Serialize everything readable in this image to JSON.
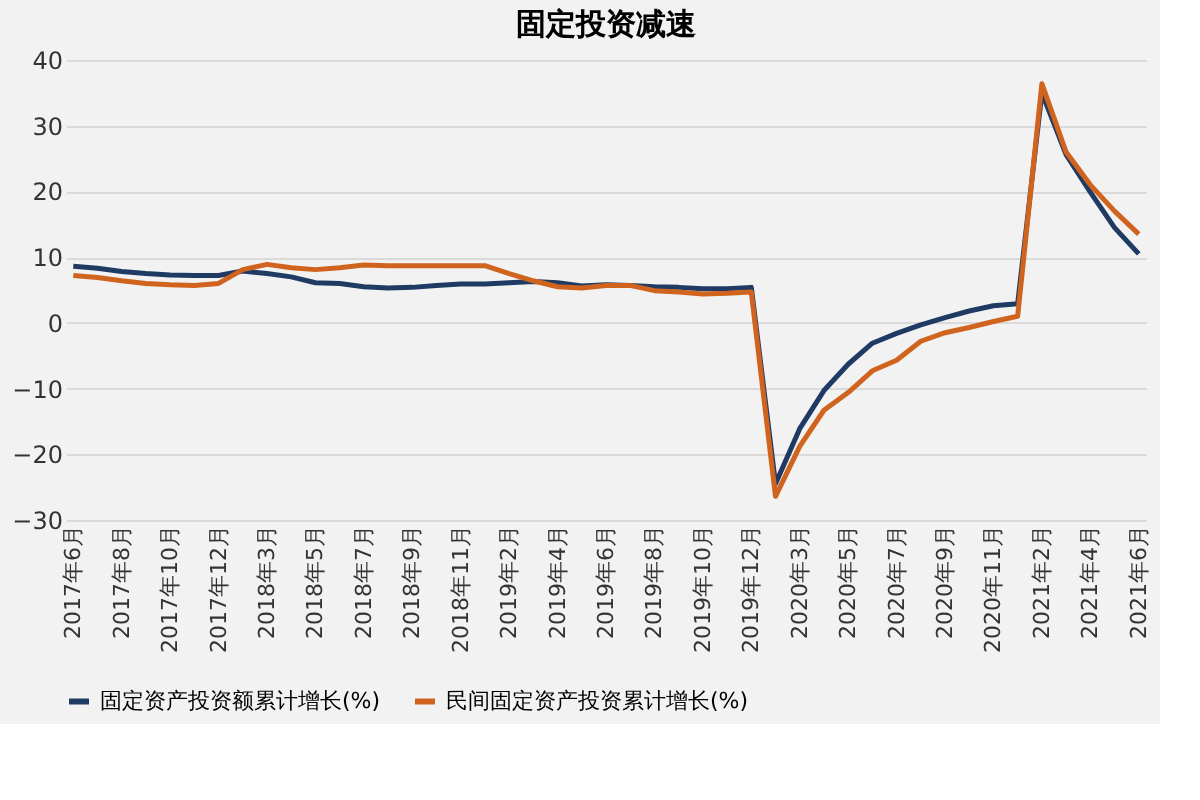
{
  "chart_data": {
    "type": "line",
    "title": "固定投资减速",
    "categories": [
      "2017年6月",
      null,
      "2017年8月",
      null,
      "2017年10月",
      null,
      "2017年12月",
      null,
      "2018年3月",
      null,
      "2018年5月",
      null,
      "2018年7月",
      null,
      "2018年9月",
      null,
      "2018年11月",
      null,
      "2019年2月",
      null,
      "2019年4月",
      null,
      "2019年6月",
      null,
      "2019年8月",
      null,
      "2019年10月",
      null,
      "2019年12月",
      null,
      "2020年3月",
      null,
      "2020年5月",
      null,
      "2020年7月",
      null,
      "2020年9月",
      null,
      "2020年11月",
      null,
      "2021年2月",
      null,
      "2021年4月",
      null,
      "2021年6月"
    ],
    "series": [
      {
        "name": "固定资产投资额累计增长(%)",
        "color": "#1f3b64",
        "values": [
          8.6,
          8.3,
          7.8,
          7.5,
          7.3,
          7.2,
          7.2,
          7.9,
          7.5,
          7.0,
          6.1,
          6.0,
          5.5,
          5.3,
          5.4,
          5.7,
          5.9,
          5.9,
          6.1,
          6.3,
          6.1,
          5.6,
          5.8,
          5.7,
          5.5,
          5.4,
          5.2,
          5.2,
          5.4,
          -24.5,
          -16.1,
          -10.3,
          -6.3,
          -3.1,
          -1.6,
          -0.3,
          0.8,
          1.8,
          2.6,
          2.9,
          35.0,
          25.6,
          19.9,
          14.5,
          10.5
        ]
      },
      {
        "name": "民间固定资产投资累计增长(%)",
        "color": "#d0641e",
        "values": [
          7.2,
          6.9,
          6.4,
          6.0,
          5.8,
          5.7,
          6.0,
          8.1,
          8.9,
          8.4,
          8.1,
          8.4,
          8.8,
          8.7,
          8.7,
          8.7,
          8.7,
          8.7,
          7.5,
          6.4,
          5.5,
          5.3,
          5.7,
          5.7,
          4.9,
          4.7,
          4.4,
          4.5,
          4.7,
          -26.4,
          -18.8,
          -13.3,
          -10.6,
          -7.3,
          -5.7,
          -2.8,
          -1.5,
          -0.7,
          0.2,
          1.0,
          36.4,
          26.0,
          21.0,
          17.0,
          13.5
        ]
      }
    ],
    "ylim": [
      -30,
      40
    ],
    "yticks": [
      -30,
      -20,
      -10,
      0,
      10,
      20,
      30,
      40
    ],
    "grid": "y",
    "legend": "bottom",
    "marker": "none",
    "line_style": "solid"
  }
}
